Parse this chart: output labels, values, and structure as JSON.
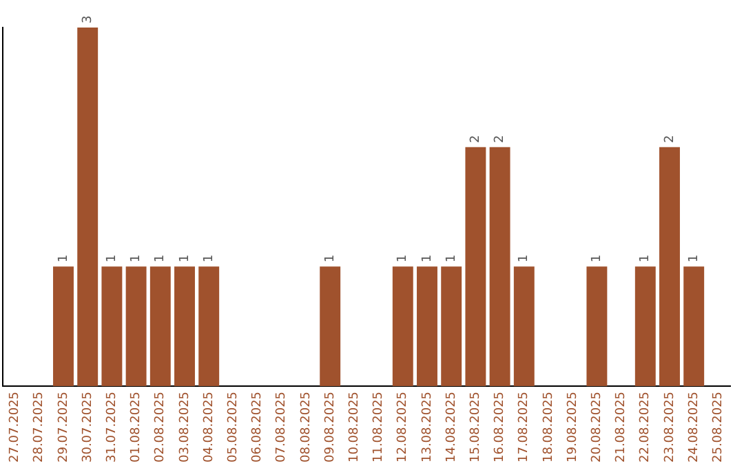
{
  "chart_data": {
    "type": "bar",
    "categories": [
      "27.07.2025",
      "28.07.2025",
      "29.07.2025",
      "30.07.2025",
      "31.07.2025",
      "01.08.2025",
      "02.08.2025",
      "03.08.2025",
      "04.08.2025",
      "05.08.2025",
      "06.08.2025",
      "07.08.2025",
      "08.08.2025",
      "09.08.2025",
      "10.08.2025",
      "11.08.2025",
      "12.08.2025",
      "13.08.2025",
      "14.08.2025",
      "15.08.2025",
      "16.08.2025",
      "17.08.2025",
      "18.08.2025",
      "19.08.2025",
      "20.08.2025",
      "21.08.2025",
      "22.08.2025",
      "23.08.2025",
      "24.08.2025",
      "25.08.2025"
    ],
    "values": [
      null,
      null,
      1,
      3,
      1,
      1,
      1,
      1,
      1,
      null,
      null,
      null,
      null,
      1,
      null,
      null,
      1,
      1,
      1,
      2,
      2,
      1,
      null,
      null,
      1,
      null,
      1,
      2,
      1,
      null
    ],
    "color": "#a0522d",
    "data_labels": true,
    "grid": false,
    "legend": false
  }
}
